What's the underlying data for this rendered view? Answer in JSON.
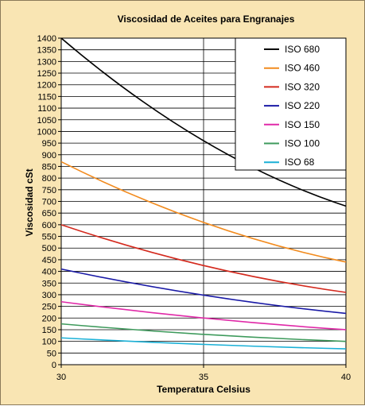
{
  "chart_data": {
    "type": "line",
    "title": "Viscosidad de Aceites para Engranajes",
    "xlabel": "Temperatura Celsius",
    "ylabel": "Viscosidad cSt",
    "x": [
      30,
      35,
      40
    ],
    "xlim": [
      30,
      40
    ],
    "ylim": [
      0,
      1400
    ],
    "ytick_step": 50,
    "grid": "horizontal + vertical at 35",
    "legend_position": "top-right",
    "background": "#f9e5b3",
    "plot_background": "#ffffff",
    "series": [
      {
        "name": "ISO 680",
        "color": "#000000",
        "values": [
          1400,
          960,
          680
        ]
      },
      {
        "name": "ISO 460",
        "color": "#f28b1e",
        "values": [
          870,
          610,
          440
        ]
      },
      {
        "name": "ISO 320",
        "color": "#d42a1e",
        "values": [
          600,
          425,
          310
        ]
      },
      {
        "name": "ISO 220",
        "color": "#1a1aa6",
        "values": [
          410,
          298,
          220
        ]
      },
      {
        "name": "ISO 150",
        "color": "#e02aa8",
        "values": [
          270,
          200,
          150
        ]
      },
      {
        "name": "ISO 100",
        "color": "#3e9a5c",
        "values": [
          175,
          130,
          100
        ]
      },
      {
        "name": "ISO 68",
        "color": "#1ab0d6",
        "values": [
          115,
          87,
          68
        ]
      }
    ]
  }
}
